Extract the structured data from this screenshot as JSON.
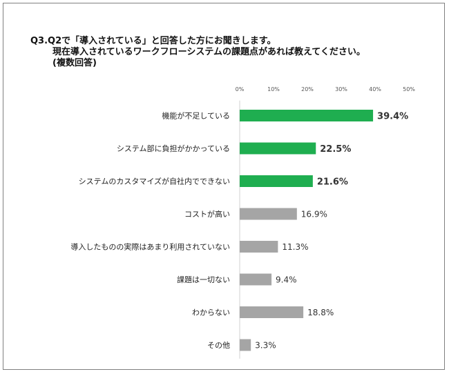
{
  "title_lines": [
    "Q3.Q2で「導入されている」と回答した方にお聞きします。",
    "現在導入されているワークフローシステムの課題点があれば教えてください。",
    "(複数回答)"
  ],
  "chart_data": {
    "type": "bar",
    "orientation": "horizontal",
    "title": "Q3.Q2で「導入されている」と回答した方にお聞きします。現在導入されているワークフローシステムの課題点があれば教えてください。(複数回答)",
    "categories": [
      "機能が不足している",
      "システム部に負担がかかっている",
      "システムのカスタマイズが自社内でできない",
      "コストが高い",
      "導入したものの実際はあまり利用されていない",
      "課題は一切ない",
      "わからない",
      "その他"
    ],
    "values": [
      39.4,
      22.5,
      21.6,
      16.9,
      11.3,
      9.4,
      18.8,
      3.3
    ],
    "value_labels": [
      "39.4%",
      "22.5%",
      "21.6%",
      "16.9%",
      "11.3%",
      "9.4%",
      "18.8%",
      "3.3%"
    ],
    "highlight": [
      true,
      true,
      true,
      false,
      false,
      false,
      false,
      false
    ],
    "xlim": [
      0,
      50
    ],
    "x_ticks": [
      0,
      10,
      20,
      30,
      40,
      50
    ],
    "x_tick_labels": [
      "0%",
      "10%",
      "20%",
      "30%",
      "40%",
      "50%"
    ],
    "xaxis_position": "top",
    "grid": false,
    "colors": {
      "highlight": "#1fae50",
      "normal": "#a5a5a5"
    }
  }
}
